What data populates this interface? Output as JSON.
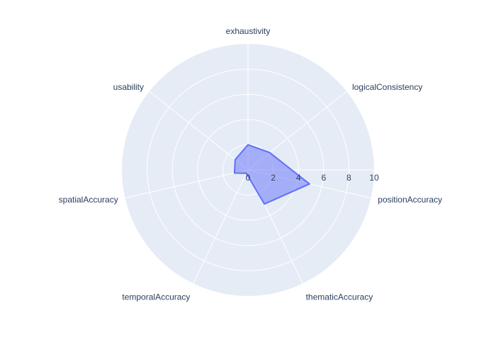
{
  "chart_data": {
    "type": "radar",
    "axes": [
      "exhaustivity",
      "logicalConsistency",
      "positionAccuracy",
      "thematicAccuracy",
      "temporalAccuracy",
      "spatialAccuracy",
      "usability"
    ],
    "series": [
      {
        "values": [
          2,
          2.2,
          5,
          3,
          0.3,
          1.1,
          1.3
        ]
      }
    ],
    "radial_range": [
      0,
      10
    ],
    "radial_ticks": [
      0,
      2,
      4,
      6,
      8,
      10
    ],
    "grid": true,
    "colors": {
      "polar_background": "#e5ecf6",
      "grid": "#ffffff",
      "series_line": "#636efa",
      "series_fill": "rgba(99,110,250,0.5)",
      "text": "#2a3f5f"
    }
  }
}
